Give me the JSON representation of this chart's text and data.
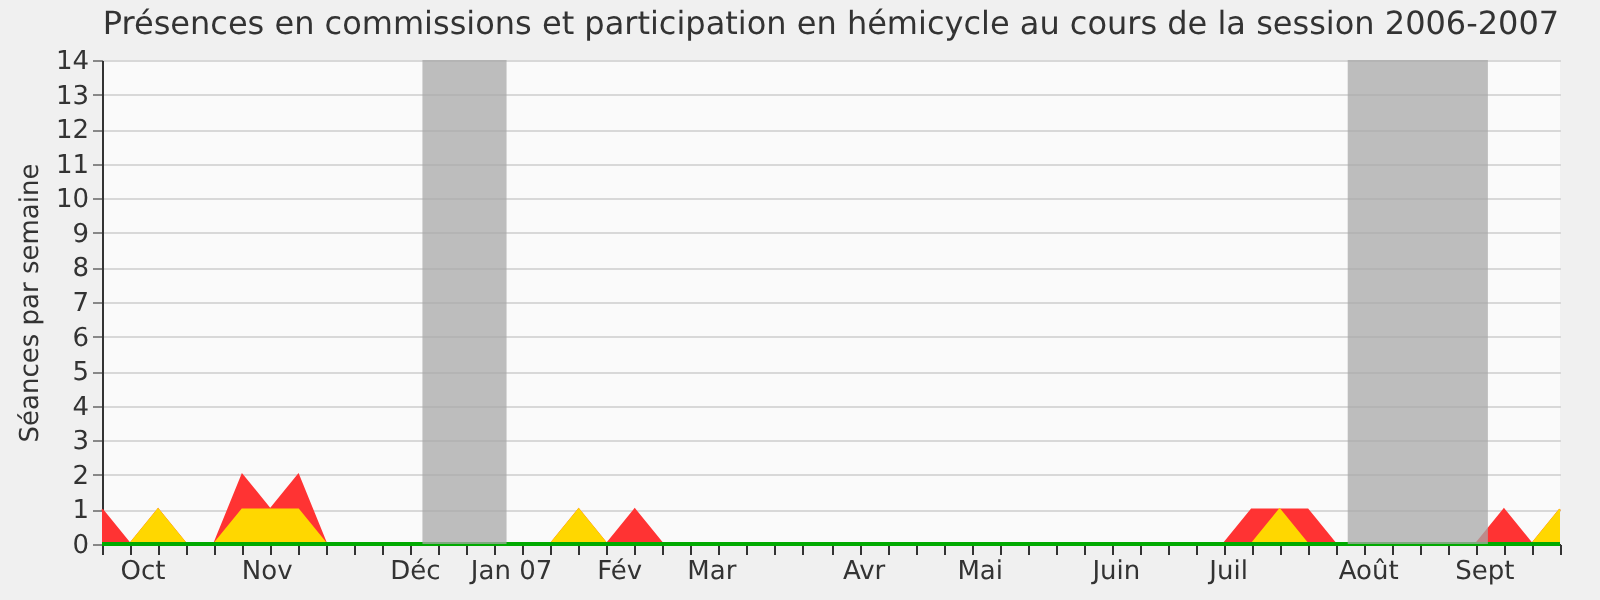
{
  "chart_data": {
    "type": "area",
    "title": "Présences en commissions et participation en hémicycle au cours de la session 2006-2007",
    "ylabel": "Séances par semaine",
    "x": [
      "2006-10-02",
      "2006-10-09",
      "2006-10-16",
      "2006-10-23",
      "2006-10-30",
      "2006-11-06",
      "2006-11-13",
      "2006-11-20",
      "2006-11-27",
      "2006-12-04",
      "2006-12-11",
      "2006-12-18",
      "2006-12-25",
      "2007-01-01",
      "2007-01-08",
      "2007-01-15",
      "2007-01-22",
      "2007-01-29",
      "2007-02-05",
      "2007-02-12",
      "2007-02-19",
      "2007-02-26",
      "2007-03-05",
      "2007-03-12",
      "2007-03-19",
      "2007-03-26",
      "2007-04-02",
      "2007-04-09",
      "2007-04-16",
      "2007-04-23",
      "2007-04-30",
      "2007-05-07",
      "2007-05-14",
      "2007-05-21",
      "2007-05-28",
      "2007-06-04",
      "2007-06-11",
      "2007-06-18",
      "2007-06-25",
      "2007-07-02",
      "2007-07-09",
      "2007-07-16",
      "2007-07-23",
      "2007-07-30",
      "2007-08-06",
      "2007-08-13",
      "2007-08-20",
      "2007-08-27",
      "2007-09-03",
      "2007-09-10",
      "2007-09-17",
      "2007-09-24",
      "2007-10-01"
    ],
    "series": [
      {
        "color": "#ff3333",
        "values": [
          1,
          0,
          1,
          0,
          0,
          2,
          1,
          2,
          0,
          0,
          0,
          0,
          0,
          0,
          0,
          0,
          0,
          1,
          0,
          1,
          0,
          0,
          0,
          0,
          0,
          0,
          0,
          0,
          0,
          0,
          0,
          0,
          0,
          0,
          0,
          0,
          0,
          0,
          0,
          0,
          0,
          1,
          1,
          1,
          0,
          0,
          0,
          0,
          0,
          0,
          1,
          0,
          1
        ]
      },
      {
        "color": "#ffd700",
        "values": [
          0,
          0,
          1,
          0,
          0,
          1,
          1,
          1,
          0,
          0,
          0,
          0,
          0,
          0,
          0,
          0,
          0,
          1,
          0,
          0,
          0,
          0,
          0,
          0,
          0,
          0,
          0,
          0,
          0,
          0,
          0,
          0,
          0,
          0,
          0,
          0,
          0,
          0,
          0,
          0,
          0,
          0,
          1,
          0,
          0,
          0,
          0,
          0,
          0,
          0,
          0,
          0,
          1
        ]
      },
      {
        "type": "line",
        "color": "#00aa00",
        "values": [
          0,
          0,
          0,
          0,
          0,
          0,
          0,
          0,
          0,
          0,
          0,
          0,
          0,
          0,
          0,
          0,
          0,
          0,
          0,
          0,
          0,
          0,
          0,
          0,
          0,
          0,
          0,
          0,
          0,
          0,
          0,
          0,
          0,
          0,
          0,
          0,
          0,
          0,
          0,
          0,
          0,
          0,
          0,
          0,
          0,
          0,
          0,
          0,
          0,
          0,
          0,
          0,
          0
        ]
      }
    ],
    "xlim": [
      "2006-10-02",
      "2007-10-01"
    ],
    "xticks": [
      {
        "value": "2006-10-02",
        "label": null
      },
      {
        "value": "2006-10-09",
        "label": null
      },
      {
        "value": "2006-10-16",
        "label": null
      },
      {
        "value": "2006-10-23",
        "label": null
      },
      {
        "value": "2006-10-30",
        "label": null
      },
      {
        "value": "2006-11-06",
        "label": null
      },
      {
        "value": "2006-11-13",
        "label": null
      },
      {
        "value": "2006-11-20",
        "label": null
      },
      {
        "value": "2006-11-27",
        "label": null
      },
      {
        "value": "2006-12-04",
        "label": null
      },
      {
        "value": "2006-12-11",
        "label": null
      },
      {
        "value": "2006-12-18",
        "label": null
      },
      {
        "value": "2006-12-25",
        "label": null
      },
      {
        "value": "2007-01-01",
        "label": null
      },
      {
        "value": "2007-01-08",
        "label": null
      },
      {
        "value": "2007-01-15",
        "label": null
      },
      {
        "value": "2007-01-22",
        "label": null
      },
      {
        "value": "2007-01-29",
        "label": null
      },
      {
        "value": "2007-02-05",
        "label": null
      },
      {
        "value": "2007-02-12",
        "label": null
      },
      {
        "value": "2007-02-19",
        "label": null
      },
      {
        "value": "2007-02-26",
        "label": null
      },
      {
        "value": "2007-03-05",
        "label": null
      },
      {
        "value": "2007-03-12",
        "label": null
      },
      {
        "value": "2007-03-19",
        "label": null
      },
      {
        "value": "2007-03-26",
        "label": null
      },
      {
        "value": "2007-04-02",
        "label": null
      },
      {
        "value": "2007-04-09",
        "label": null
      },
      {
        "value": "2007-04-16",
        "label": null
      },
      {
        "value": "2007-04-23",
        "label": null
      },
      {
        "value": "2007-04-30",
        "label": null
      },
      {
        "value": "2007-05-07",
        "label": null
      },
      {
        "value": "2007-05-14",
        "label": null
      },
      {
        "value": "2007-05-21",
        "label": null
      },
      {
        "value": "2007-05-28",
        "label": null
      },
      {
        "value": "2007-06-04",
        "label": null
      },
      {
        "value": "2007-06-11",
        "label": null
      },
      {
        "value": "2007-06-18",
        "label": null
      },
      {
        "value": "2007-06-25",
        "label": null
      },
      {
        "value": "2007-07-02",
        "label": null
      },
      {
        "value": "2007-07-09",
        "label": null
      },
      {
        "value": "2007-07-16",
        "label": null
      },
      {
        "value": "2007-07-23",
        "label": null
      },
      {
        "value": "2007-07-30",
        "label": null
      },
      {
        "value": "2007-08-06",
        "label": null
      },
      {
        "value": "2007-08-13",
        "label": null
      },
      {
        "value": "2007-08-20",
        "label": null
      },
      {
        "value": "2007-08-27",
        "label": null
      },
      {
        "value": "2007-09-03",
        "label": null
      },
      {
        "value": "2007-09-10",
        "label": null
      },
      {
        "value": "2007-09-17",
        "label": null
      },
      {
        "value": "2007-09-24",
        "label": null
      },
      {
        "value": "2007-10-01",
        "label": null
      },
      {
        "value": "2006-10-12",
        "label": "Oct"
      },
      {
        "value": "2006-11-12",
        "label": "Nov"
      },
      {
        "value": "2006-12-19",
        "label": "Déc"
      },
      {
        "value": "2007-01-12",
        "label": "Jan 07"
      },
      {
        "value": "2007-02-08",
        "label": "Fév"
      },
      {
        "value": "2007-03-03",
        "label": "Mar"
      },
      {
        "value": "2007-04-10",
        "label": "Avr"
      },
      {
        "value": "2007-05-09",
        "label": "Mai"
      },
      {
        "value": "2007-06-12",
        "label": "Juin"
      },
      {
        "value": "2007-07-10",
        "label": "Juil"
      },
      {
        "value": "2007-08-14",
        "label": "Août"
      },
      {
        "value": "2007-09-12",
        "label": "Sept"
      }
    ],
    "ylim": [
      0,
      14
    ],
    "yticks": [
      0,
      1,
      2,
      3,
      4,
      5,
      6,
      7,
      8,
      9,
      10,
      11,
      12,
      13,
      14
    ],
    "grid": "y",
    "bands": [
      {
        "axis": "x",
        "from": "2006-12-21",
        "to": "2007-01-11",
        "color": "#a8a8a8"
      },
      {
        "axis": "x",
        "from": "2007-08-09",
        "to": "2007-09-13",
        "color": "#a8a8a8"
      }
    ]
  }
}
